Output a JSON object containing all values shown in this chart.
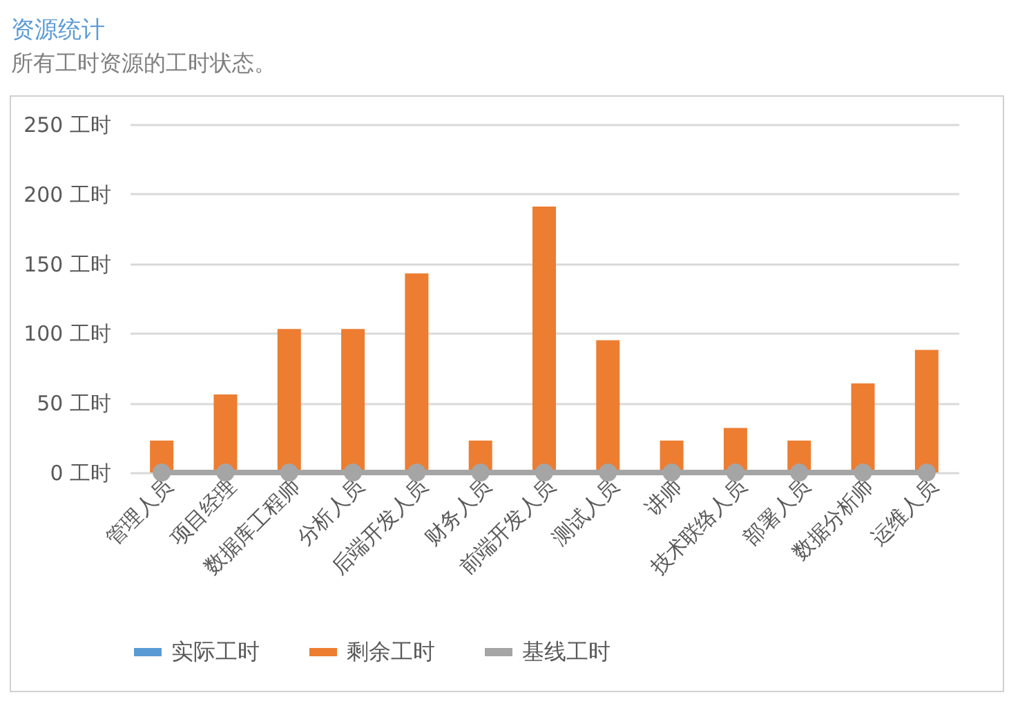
{
  "chart_data": {
    "type": "bar",
    "title": "资源统计",
    "subtitle": "所有工时资源的工时状态。",
    "stacked": true,
    "categories": [
      "管理人员",
      "项目经理",
      "数据库工程师",
      "分析人员",
      "后端开发人员",
      "财务人员",
      "前端开发人员",
      "测试人员",
      "讲师",
      "技术联络人员",
      "部署人员",
      "数据分析师",
      "运维人员"
    ],
    "series": [
      {
        "name": "实际工时",
        "color": "#5b9bd5",
        "values": [
          0,
          0,
          0,
          0,
          0,
          0,
          0,
          0,
          0,
          0,
          0,
          0,
          0
        ]
      },
      {
        "name": "剩余工时",
        "color": "#ed7d31",
        "values": [
          23,
          56,
          103,
          103,
          143,
          23,
          191,
          95,
          23,
          32,
          23,
          64,
          88
        ]
      },
      {
        "name": "基线工时",
        "type": "line",
        "color": "#a5a5a5",
        "marker": "circle",
        "values": [
          0,
          0,
          0,
          0,
          0,
          0,
          0,
          0,
          0,
          0,
          0,
          0,
          0
        ]
      }
    ],
    "ylim": [
      0,
      250
    ],
    "yticks": [
      {
        "value": 0,
        "label": "0 工时"
      },
      {
        "value": 50,
        "label": "50 工时"
      },
      {
        "value": 100,
        "label": "100 工时"
      },
      {
        "value": 150,
        "label": "150 工时"
      },
      {
        "value": 200,
        "label": "200 工时"
      },
      {
        "value": 250,
        "label": "250 工时"
      }
    ],
    "grid": "y",
    "legend": "bottom"
  }
}
